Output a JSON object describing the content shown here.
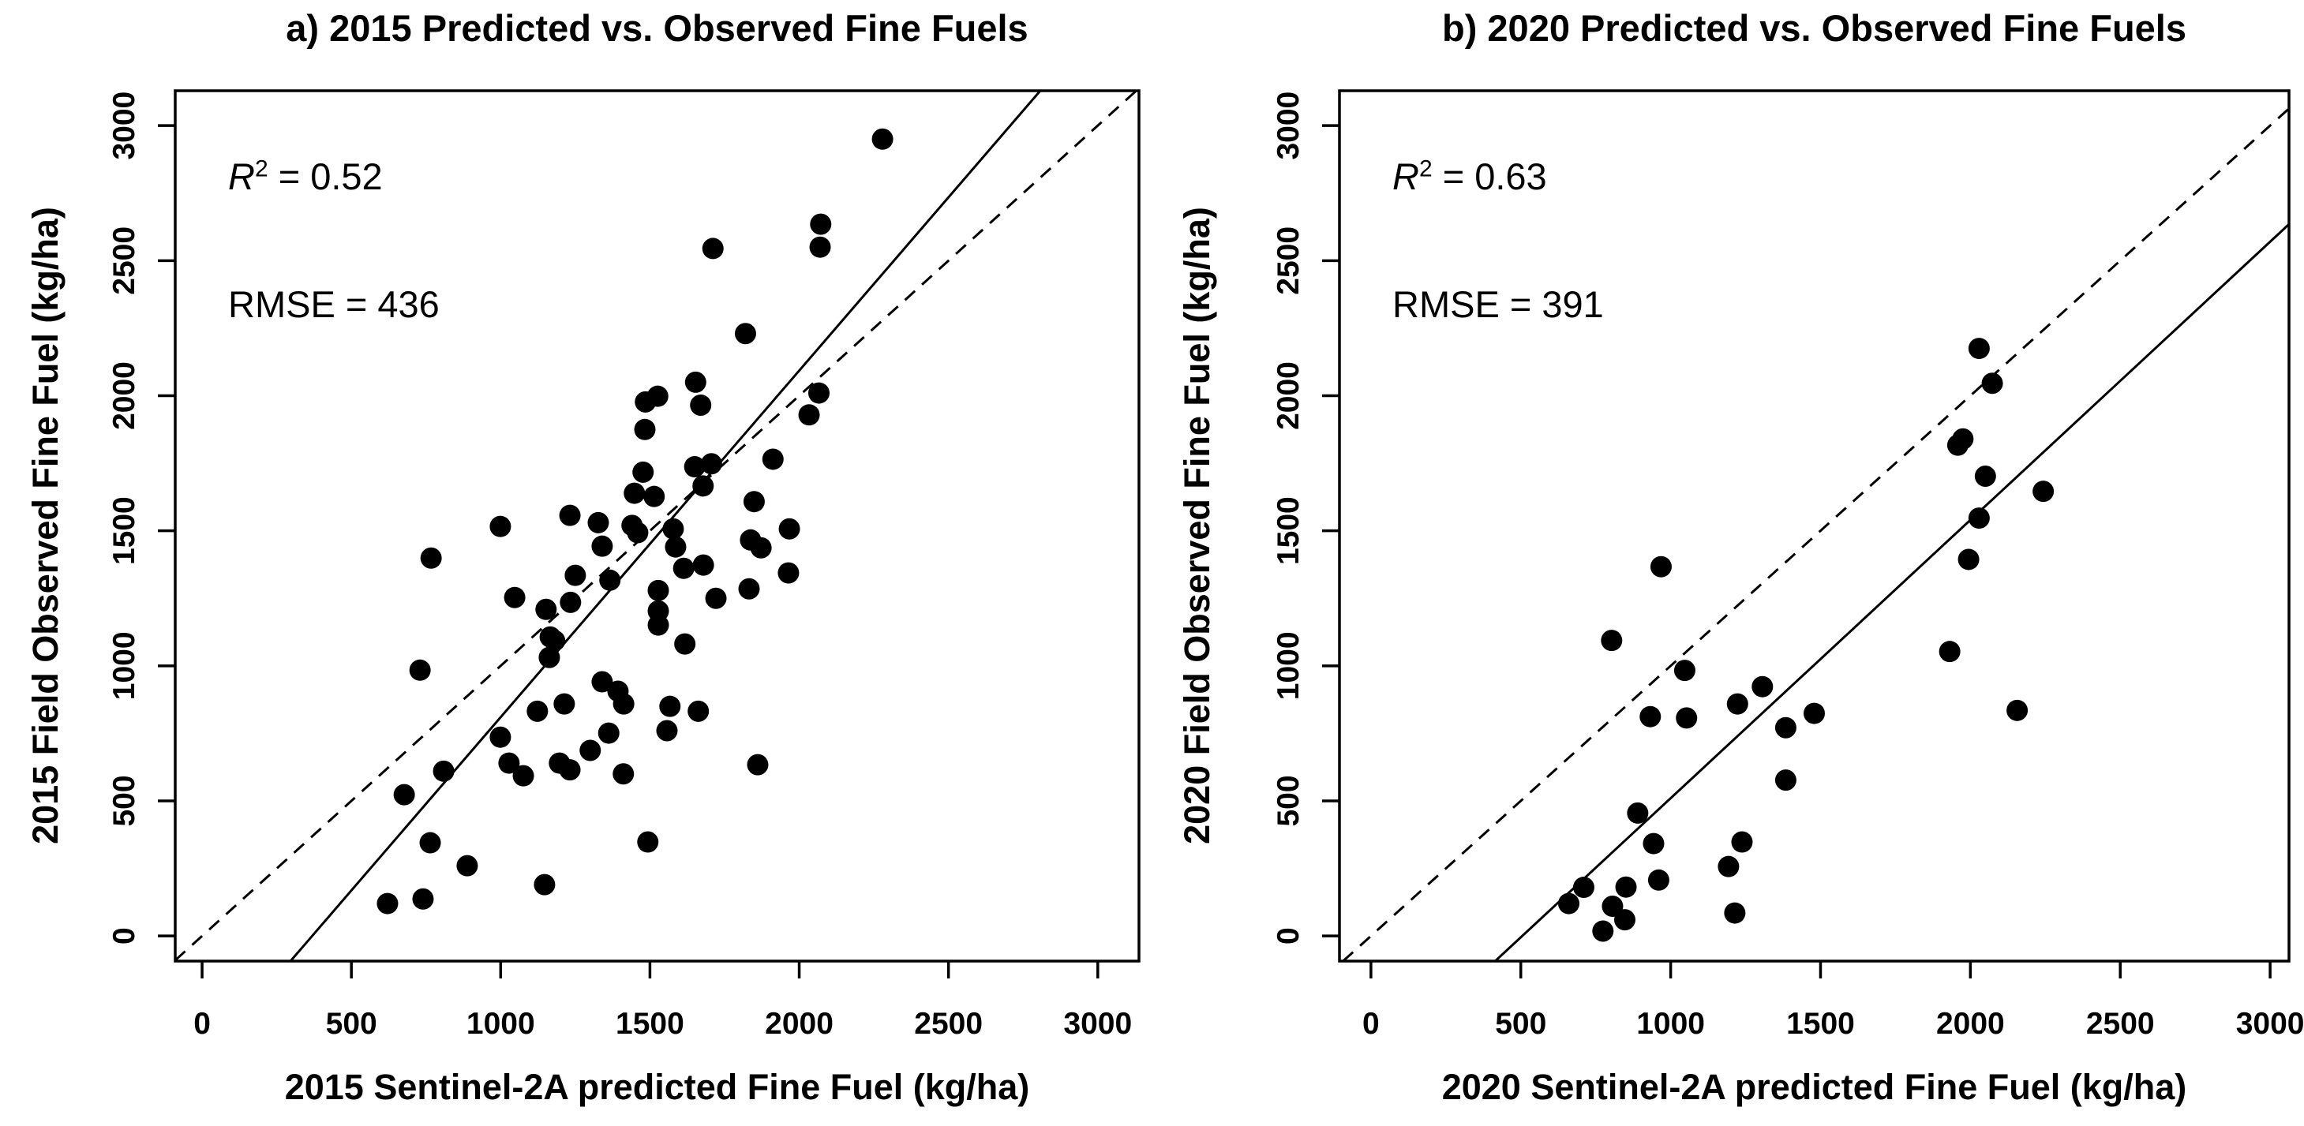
{
  "figure": {
    "background_color": "#ffffff",
    "point_color": "#000000",
    "axis_color": "#000000"
  },
  "chart_data": [
    {
      "type": "scatter",
      "panel": "a",
      "title": "a) 2015 Predicted vs. Observed Fine Fuels",
      "xlabel": "2015 Sentinel-2A predicted Fine Fuel (kg/ha)",
      "ylabel": "2015 Field Observed Fine Fuel (kg/ha)",
      "annotation": {
        "r2_var": "R",
        "r2_exp": "2",
        "r2_rest": " = 0.52",
        "rmse_text": "RMSE = 436"
      },
      "xlim": [
        -90,
        3138
      ],
      "ylim": [
        -93,
        3129
      ],
      "xticks": [
        0,
        500,
        1000,
        1500,
        2000,
        2500,
        3000
      ],
      "yticks": [
        0,
        500,
        1000,
        1500,
        2000,
        2500,
        3000
      ],
      "grid": false,
      "legend": null,
      "identity_line": {
        "style": "dashed",
        "slope": 1,
        "intercept": 0
      },
      "regression_line": {
        "style": "solid",
        "slope": 1.283,
        "intercept": -473
      },
      "points": [
        [
          2279,
          2950
        ],
        [
          2072,
          2635
        ],
        [
          2070,
          2550
        ],
        [
          1711,
          2545
        ],
        [
          1820,
          2230
        ],
        [
          2066,
          2010
        ],
        [
          2033,
          1929
        ],
        [
          1653,
          2050
        ],
        [
          1670,
          1965
        ],
        [
          1485,
          1977
        ],
        [
          1526,
          1998
        ],
        [
          1483,
          1875
        ],
        [
          1912,
          1765
        ],
        [
          1650,
          1737
        ],
        [
          1706,
          1748
        ],
        [
          1678,
          1666
        ],
        [
          1477,
          1717
        ],
        [
          1448,
          1639
        ],
        [
          1514,
          1627
        ],
        [
          1849,
          1608
        ],
        [
          1232,
          1557
        ],
        [
          999,
          1516
        ],
        [
          1872,
          1437
        ],
        [
          1679,
          1373
        ],
        [
          1613,
          1361
        ],
        [
          1964,
          1344
        ],
        [
          767,
          1399
        ],
        [
          1340,
          1443
        ],
        [
          1459,
          1493
        ],
        [
          1047,
          1253
        ],
        [
          1250,
          1335
        ],
        [
          1152,
          1209
        ],
        [
          1234,
          1235
        ],
        [
          1366,
          1317
        ],
        [
          1166,
          1107
        ],
        [
          1181,
          1093
        ],
        [
          1163,
          1031
        ],
        [
          730,
          984
        ],
        [
          1123,
          832
        ],
        [
          1213,
          859
        ],
        [
          1393,
          906
        ],
        [
          1412,
          859
        ],
        [
          1340,
          941
        ],
        [
          999,
          736
        ],
        [
          1300,
          687
        ],
        [
          1362,
          751
        ],
        [
          1028,
          640
        ],
        [
          1076,
          593
        ],
        [
          1197,
          640
        ],
        [
          1232,
          615
        ],
        [
          809,
          610
        ],
        [
          677,
          523
        ],
        [
          1411,
          600
        ],
        [
          764,
          345
        ],
        [
          888,
          260
        ],
        [
          621,
          120
        ],
        [
          740,
          137
        ],
        [
          1493,
          348
        ],
        [
          1147,
          190
        ],
        [
          1586,
          1440
        ],
        [
          1837,
          1466
        ],
        [
          1967,
          1507
        ],
        [
          1578,
          1507
        ],
        [
          1721,
          1250
        ],
        [
          1832,
          1285
        ],
        [
          1528,
          1279
        ],
        [
          1528,
          1203
        ],
        [
          1528,
          1151
        ],
        [
          1617,
          1081
        ],
        [
          1567,
          850
        ],
        [
          1662,
          832
        ],
        [
          1557,
          760
        ],
        [
          1861,
          634
        ],
        [
          1327,
          1530
        ],
        [
          1440,
          1520
        ]
      ]
    },
    {
      "type": "scatter",
      "panel": "b",
      "title": "b) 2020 Predicted vs. Observed Fine Fuels",
      "xlabel": "2020 Sentinel-2A predicted Fine Fuel (kg/ha)",
      "ylabel": "2020 Field Observed Fine Fuel (kg/ha)",
      "annotation": {
        "r2_var": "R",
        "r2_exp": "2",
        "r2_rest": " = 0.63",
        "rmse_text": "RMSE = 391"
      },
      "xlim": [
        -105,
        3063
      ],
      "ylim": [
        -93,
        3129
      ],
      "xticks": [
        0,
        500,
        1000,
        1500,
        2000,
        2500,
        3000
      ],
      "yticks": [
        0,
        500,
        1000,
        1500,
        2000,
        2500,
        3000
      ],
      "grid": false,
      "legend": null,
      "identity_line": {
        "style": "dashed",
        "slope": 1,
        "intercept": 0
      },
      "regression_line": {
        "style": "solid",
        "slope": 1.03,
        "intercept": -520
      },
      "points": [
        [
          2029,
          2175
        ],
        [
          2073,
          2046
        ],
        [
          1958,
          1817
        ],
        [
          1975,
          1840
        ],
        [
          2050,
          1702
        ],
        [
          2243,
          1646
        ],
        [
          2029,
          1547
        ],
        [
          1994,
          1394
        ],
        [
          968,
          1367
        ],
        [
          803,
          1094
        ],
        [
          1931,
          1053
        ],
        [
          1047,
          983
        ],
        [
          1306,
          923
        ],
        [
          1223,
          859
        ],
        [
          932,
          812
        ],
        [
          1053,
          807
        ],
        [
          1479,
          824
        ],
        [
          1384,
          771
        ],
        [
          2156,
          835
        ],
        [
          1384,
          577
        ],
        [
          890,
          455
        ],
        [
          943,
          342
        ],
        [
          960,
          207
        ],
        [
          851,
          181
        ],
        [
          806,
          110
        ],
        [
          847,
          60
        ],
        [
          710,
          180
        ],
        [
          660,
          120
        ],
        [
          774,
          18
        ],
        [
          1238,
          348
        ],
        [
          1193,
          257
        ],
        [
          1214,
          85
        ]
      ]
    }
  ]
}
